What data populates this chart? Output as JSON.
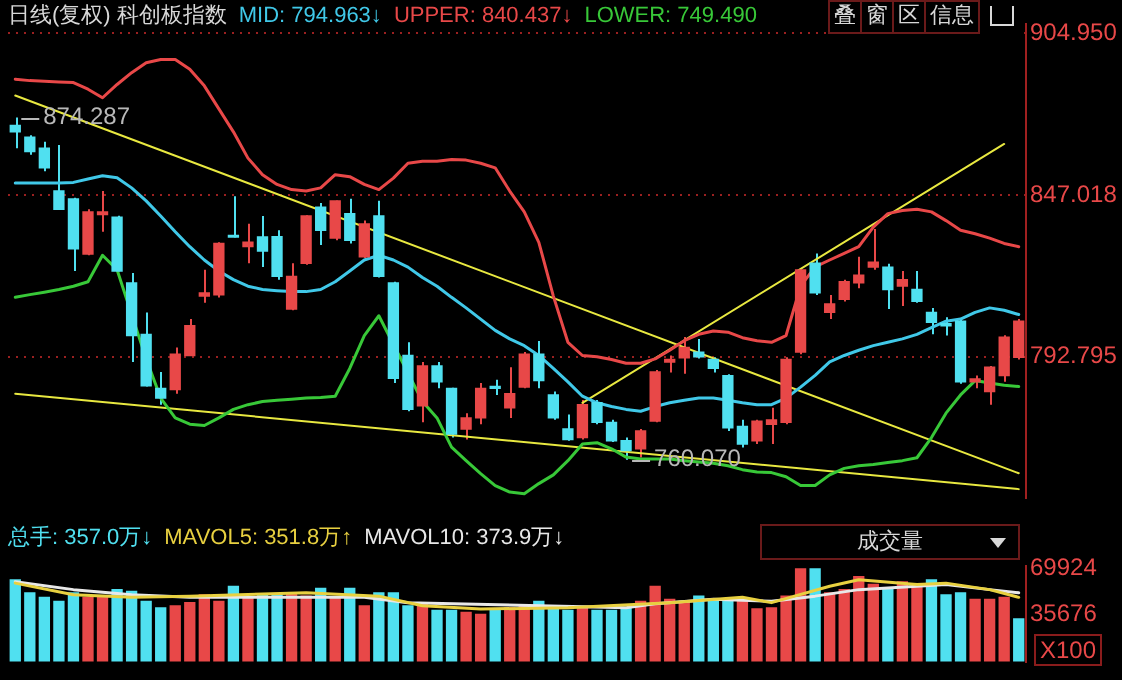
{
  "chart_data": [
    {
      "type": "candlestick",
      "title": "日线(复权)  科创板指数",
      "log": "y",
      "grid": "y",
      "tick_labels": "y",
      "categories": [
        null,
        null,
        null,
        null,
        null,
        null,
        null,
        null,
        null,
        null,
        null,
        null,
        null,
        null,
        null,
        null,
        null,
        null,
        null,
        null,
        null,
        null,
        null,
        null,
        null,
        null,
        null,
        null,
        null,
        null,
        null,
        null,
        null,
        null,
        null,
        null,
        null,
        null,
        null,
        null,
        null,
        null,
        null,
        null,
        null,
        null,
        null,
        null,
        null,
        null,
        null,
        null,
        null,
        null,
        null,
        null,
        null,
        null,
        null,
        null,
        null,
        null,
        null,
        null,
        null,
        null,
        null,
        null,
        null,
        null
      ],
      "ylim": [
        748.4,
        908.4
      ],
      "yticks": [
        792.795,
        847.018,
        {
          "value": 904.95,
          "label": "904.950"
        }
      ],
      "ohlc": [
        [
          871.5,
          874.287,
          863.4,
          869.2
        ],
        [
          867.3,
          868.0,
          861.1,
          862.2
        ],
        [
          863.4,
          865.7,
          855.3,
          856.5
        ],
        [
          848.4,
          864.5,
          841.9,
          842.1
        ],
        [
          845.7,
          846.1,
          821.1,
          828.6
        ],
        [
          826.8,
          842.1,
          826.4,
          841.2
        ],
        [
          840.3,
          848.4,
          834.4,
          841.2
        ],
        [
          839.4,
          839.9,
          820.9,
          821.1
        ],
        [
          817.1,
          820.4,
          791.1,
          799.7
        ],
        [
          800.1,
          807.3,
          783.2,
          783.4
        ],
        [
          782.6,
          787.9,
          777.4,
          779.5
        ],
        [
          782.2,
          795.8,
          780.9,
          793.6
        ],
        [
          793.2,
          805.1,
          793.0,
          802.9
        ],
        [
          812.7,
          821.5,
          810.5,
          813.8
        ],
        [
          813.1,
          830.8,
          812.2,
          830.4
        ],
        [
          833.1,
          846.6,
          832.4,
          832.6
        ],
        [
          829.3,
          837.1,
          823.7,
          830.8
        ],
        [
          832.6,
          839.8,
          822.4,
          827.8
        ],
        [
          832.7,
          834.9,
          818.2,
          819.3
        ],
        [
          808.4,
          823.7,
          808.0,
          819.3
        ],
        [
          823.7,
          840.0,
          823.2,
          839.8
        ],
        [
          842.8,
          844.3,
          829.9,
          834.9
        ],
        [
          832.2,
          845.1,
          831.5,
          845.0
        ],
        [
          840.6,
          845.7,
          830.4,
          831.5
        ],
        [
          825.9,
          838.2,
          825.5,
          837.1
        ],
        [
          839.8,
          845.0,
          818.9,
          819.3
        ],
        [
          817.1,
          817.5,
          784.3,
          785.8
        ],
        [
          793.2,
          797.5,
          775.3,
          775.9
        ],
        [
          777.0,
          791.1,
          771.8,
          789.8
        ],
        [
          789.8,
          791.1,
          782.6,
          784.7
        ],
        [
          782.6,
          782.8,
          767.0,
          768.1
        ],
        [
          769.7,
          774.7,
          766.4,
          773.2
        ],
        [
          773.2,
          784.3,
          771.2,
          782.6
        ],
        [
          783.2,
          785.4,
          780.5,
          782.6
        ],
        [
          776.4,
          789.4,
          773.2,
          780.9
        ],
        [
          783.0,
          794.3,
          782.6,
          793.6
        ],
        [
          793.6,
          797.9,
          782.6,
          785.1
        ],
        [
          780.5,
          781.6,
          772.6,
          773.2
        ],
        [
          769.7,
          774.3,
          766.0,
          766.4
        ],
        [
          767.0,
          778.9,
          766.4,
          777.4
        ],
        [
          778.0,
          778.9,
          771.2,
          771.8
        ],
        [
          771.8,
          772.6,
          765.6,
          766.0
        ],
        [
          766.0,
          767.0,
          760.07,
          762.9
        ],
        [
          763.5,
          769.7,
          760.8,
          769.1
        ],
        [
          772.2,
          788.5,
          771.8,
          787.9
        ],
        [
          791.1,
          793.2,
          787.7,
          791.9
        ],
        [
          792.4,
          799.2,
          787.3,
          795.8
        ],
        [
          794.3,
          798.6,
          792.2,
          792.8
        ],
        [
          791.9,
          792.6,
          787.7,
          789.0
        ],
        [
          786.7,
          787.1,
          769.1,
          770.1
        ],
        [
          770.5,
          772.6,
          763.9,
          765.0
        ],
        [
          766.0,
          772.6,
          765.0,
          772.2
        ],
        [
          771.2,
          776.4,
          765.0,
          772.6
        ],
        [
          771.8,
          792.6,
          771.2,
          791.9
        ],
        [
          794.3,
          821.9,
          793.6,
          821.5
        ],
        [
          823.7,
          827.0,
          813.1,
          813.8
        ],
        [
          807.3,
          813.1,
          805.1,
          810.1
        ],
        [
          811.6,
          818.2,
          810.9,
          817.5
        ],
        [
          817.1,
          825.9,
          815.3,
          819.7
        ],
        [
          822.4,
          835.3,
          821.5,
          824.1
        ],
        [
          822.4,
          823.5,
          808.4,
          814.9
        ],
        [
          816.0,
          821.1,
          809.4,
          818.2
        ],
        [
          814.9,
          821.1,
          810.5,
          811.0
        ],
        [
          807.3,
          808.8,
          800.1,
          804.0
        ],
        [
          803.6,
          805.7,
          799.7,
          802.9
        ],
        [
          804.4,
          805.1,
          784.1,
          784.7
        ],
        [
          784.7,
          786.7,
          782.6,
          785.6
        ],
        [
          781.6,
          789.8,
          777.4,
          789.4
        ],
        [
          786.7,
          799.8,
          784.7,
          799.2
        ],
        [
          792.6,
          805.1,
          791.9,
          804.4
        ]
      ],
      "colors": [
        "#50e0f0",
        "#50e0f0",
        "#50e0f0",
        "#50e0f0",
        "#50e0f0",
        "#e84848",
        "#e84848",
        "#50e0f0",
        "#50e0f0",
        "#50e0f0",
        "#50e0f0",
        "#e84848",
        "#e84848",
        "#e84848",
        "#e84848",
        "#50e0f0",
        "#e84848",
        "#50e0f0",
        "#50e0f0",
        "#e84848",
        "#e84848",
        "#50e0f0",
        "#e84848",
        "#50e0f0",
        "#e84848",
        "#50e0f0",
        "#50e0f0",
        "#50e0f0",
        "#e84848",
        "#50e0f0",
        "#50e0f0",
        "#e84848",
        "#e84848",
        "#50e0f0",
        "#e84848",
        "#e84848",
        "#50e0f0",
        "#50e0f0",
        "#50e0f0",
        "#e84848",
        "#50e0f0",
        "#50e0f0",
        "#50e0f0",
        "#e84848",
        "#e84848",
        "#e84848",
        "#e84848",
        "#50e0f0",
        "#50e0f0",
        "#50e0f0",
        "#50e0f0",
        "#e84848",
        "#e84848",
        "#e84848",
        "#e84848",
        "#50e0f0",
        "#e84848",
        "#e84848",
        "#e84848",
        "#e84848",
        "#50e0f0",
        "#e84848",
        "#50e0f0",
        "#50e0f0",
        "#50e0f0",
        "#50e0f0",
        "#e84848",
        "#e84848",
        "#e84848",
        "#e84848"
      ],
      "series": [
        {
          "type": "line",
          "name": "MID: 794.963↓",
          "color": "#40c8e8",
          "values": [
            851.2,
            851.2,
            851.2,
            851.2,
            851.4,
            852.6,
            853.7,
            853.0,
            849.5,
            845.0,
            839.8,
            834.4,
            829.3,
            824.8,
            821.1,
            818.2,
            816.0,
            814.9,
            814.5,
            814.2,
            814.2,
            814.9,
            817.5,
            821.1,
            824.8,
            826.4,
            824.8,
            822.4,
            818.9,
            816.0,
            812.3,
            808.8,
            805.1,
            801.4,
            798.6,
            796.4,
            793.2,
            789.0,
            784.7,
            780.1,
            778.0,
            776.8,
            775.9,
            775.3,
            776.8,
            778.0,
            778.8,
            779.5,
            779.5,
            778.8,
            778.0,
            777.4,
            777.4,
            779.5,
            783.0,
            786.8,
            791.1,
            793.2,
            794.9,
            796.4,
            797.5,
            798.6,
            800.1,
            802.3,
            804.4,
            805.1,
            807.3,
            808.8,
            808.0,
            806.6
          ]
        },
        {
          "type": "line",
          "name": "UPPER: 840.437↓",
          "color": "#e84848",
          "values": [
            888.1,
            887.6,
            887.4,
            887.1,
            886.9,
            884.5,
            881.4,
            886.2,
            890.5,
            894.1,
            895.3,
            895.3,
            891.7,
            885.7,
            877.4,
            869.2,
            859.9,
            854.1,
            850.7,
            848.9,
            848.4,
            849.5,
            854.1,
            853.4,
            850.7,
            848.9,
            852.9,
            858.1,
            858.8,
            858.8,
            859.4,
            859.2,
            858.1,
            856.5,
            848.4,
            841.2,
            830.8,
            812.7,
            797.5,
            793.2,
            792.8,
            791.9,
            790.7,
            790.7,
            792.1,
            794.9,
            798.0,
            800.1,
            801.2,
            800.8,
            799.0,
            798.0,
            797.5,
            799.7,
            816.0,
            822.5,
            824.8,
            827.0,
            829.3,
            836.0,
            840.6,
            841.7,
            842.1,
            841.2,
            838.2,
            834.9,
            833.7,
            832.2,
            830.4,
            829.3
          ]
        },
        {
          "type": "line",
          "name": "LOWER: 749.490",
          "color": "#38c838",
          "values": [
            812.3,
            813.2,
            814.0,
            814.9,
            816.0,
            817.5,
            826.4,
            821.5,
            null,
            792.1,
            779.5,
            773.2,
            771.2,
            770.8,
            773.2,
            775.9,
            777.4,
            778.4,
            778.8,
            779.1,
            779.5,
            779.7,
            780.1,
            789.0,
            799.7,
            806.2,
            null,
            null,
            778.4,
            773.2,
            764.0,
            759.8,
            755.8,
            752.1,
            750.1,
            749.6,
            752.7,
            755.4,
            759.8,
            765.0,
            765.4,
            763.5,
            760.9,
            760.3,
            760.3,
            760.3,
            759.8,
            759.4,
            759.0,
            758.2,
            757.0,
            756.3,
            756.1,
            754.8,
            752.1,
            752.1,
            755.4,
            757.4,
            758.2,
            758.6,
            759.2,
            759.8,
            760.7,
            767.0,
            774.7,
            780.5,
            785.1,
            784.3,
            783.6,
            783.2
          ]
        },
        {
          "type": "line",
          "color": "#e8e840",
          "values": [
            882.2,
            null,
            null,
            null,
            null,
            null,
            null,
            null,
            null,
            null,
            null,
            null,
            null,
            null,
            null,
            null,
            null,
            null,
            null,
            null,
            null,
            null,
            null,
            null,
            null,
            null,
            null,
            null,
            null,
            null,
            null,
            null,
            null,
            null,
            null,
            null,
            null,
            null,
            null,
            null,
            null,
            null,
            null,
            null,
            null,
            null,
            null,
            null,
            null,
            null,
            null,
            null,
            null,
            null,
            null,
            null,
            null,
            null,
            null,
            null,
            null,
            null,
            null,
            null,
            null,
            null,
            null,
            null,
            null,
            755.9
          ]
        },
        {
          "type": "line",
          "color": "#e8e840",
          "values": [
            780.9,
            null,
            null,
            null,
            null,
            null,
            null,
            null,
            null,
            null,
            null,
            null,
            null,
            null,
            null,
            null,
            null,
            null,
            null,
            null,
            null,
            null,
            null,
            null,
            null,
            null,
            null,
            null,
            null,
            null,
            null,
            null,
            null,
            null,
            null,
            null,
            null,
            null,
            null,
            null,
            null,
            null,
            null,
            null,
            null,
            null,
            null,
            null,
            null,
            null,
            null,
            null,
            null,
            null,
            null,
            null,
            null,
            null,
            null,
            null,
            null,
            null,
            null,
            null,
            null,
            null,
            null,
            null,
            null,
            751.0
          ]
        },
        {
          "type": "line",
          "color": "#e8e840",
          "values": [
            null,
            null,
            null,
            null,
            null,
            null,
            null,
            null,
            null,
            null,
            null,
            null,
            null,
            null,
            null,
            null,
            null,
            null,
            null,
            null,
            null,
            null,
            null,
            null,
            null,
            null,
            null,
            null,
            null,
            null,
            null,
            null,
            null,
            null,
            null,
            null,
            null,
            null,
            null,
            778.0,
            null,
            null,
            null,
            null,
            null,
            null,
            null,
            null,
            null,
            null,
            null,
            null,
            null,
            null,
            null,
            null,
            null,
            null,
            null,
            null,
            null,
            null,
            null,
            null,
            null,
            null,
            null,
            null,
            864.9,
            null
          ]
        }
      ],
      "annotations": [
        {
          "text": "874.287",
          "y": 874.287
        },
        {
          "text": "760.070",
          "y": 760.07
        },
        "叠",
        "窗",
        "区",
        "信息"
      ]
    },
    {
      "type": "bar",
      "tick_labels": "y",
      "ylabel": "X100",
      "categories": [
        null,
        null,
        null,
        null,
        null,
        null,
        null,
        null,
        null,
        null,
        null,
        null,
        null,
        null,
        null,
        null,
        null,
        null,
        null,
        null,
        null,
        null,
        null,
        null,
        null,
        null,
        null,
        null,
        null,
        null,
        null,
        null,
        null,
        null,
        null,
        null,
        null,
        null,
        null,
        null,
        null,
        null,
        null,
        null,
        null,
        null,
        null,
        null,
        null,
        null,
        null,
        null,
        null,
        null,
        null,
        null,
        null,
        null,
        null,
        null,
        null,
        null,
        null,
        null,
        null,
        null,
        null,
        null,
        null,
        null
      ],
      "ylim": [
        0,
        72000
      ],
      "yticks": [
        69924,
        35676
      ],
      "series": [
        {
          "name": "总手: 357.0万↓",
          "colors": [
            "#50e0f0",
            "#50e0f0",
            "#50e0f0",
            "#50e0f0",
            "#50e0f0",
            "#e84848",
            "#e84848",
            "#50e0f0",
            "#50e0f0",
            "#50e0f0",
            "#50e0f0",
            "#e84848",
            "#e84848",
            "#e84848",
            "#e84848",
            "#50e0f0",
            "#e84848",
            "#50e0f0",
            "#50e0f0",
            "#e84848",
            "#e84848",
            "#50e0f0",
            "#e84848",
            "#50e0f0",
            "#e84848",
            "#50e0f0",
            "#50e0f0",
            "#50e0f0",
            "#e84848",
            "#50e0f0",
            "#50e0f0",
            "#e84848",
            "#e84848",
            "#50e0f0",
            "#e84848",
            "#e84848",
            "#50e0f0",
            "#50e0f0",
            "#50e0f0",
            "#e84848",
            "#50e0f0",
            "#50e0f0",
            "#50e0f0",
            "#e84848",
            "#e84848",
            "#e84848",
            "#e84848",
            "#50e0f0",
            "#50e0f0",
            "#50e0f0",
            "#e84848",
            "#e84848",
            "#e84848",
            "#e84848",
            "#e84848",
            "#50e0f0",
            "#e84848",
            "#e84848",
            "#e84848",
            "#e84848",
            "#50e0f0",
            "#e84848",
            "#e84848",
            "#50e0f0",
            "#50e0f0",
            "#50e0f0",
            "#e84848",
            "#e84848",
            "#e84848",
            "#50e0f0"
          ],
          "values": [
            61600,
            51800,
            48400,
            45400,
            51800,
            48400,
            48400,
            54200,
            52800,
            45400,
            40500,
            42000,
            44400,
            50300,
            45400,
            56700,
            48400,
            50300,
            50300,
            51800,
            49300,
            55200,
            48400,
            55200,
            42000,
            51800,
            51800,
            42000,
            44400,
            38600,
            38600,
            37100,
            35600,
            38600,
            40500,
            42000,
            45400,
            42000,
            38600,
            40500,
            38600,
            38600,
            40500,
            45400,
            56700,
            46900,
            45400,
            49300,
            45400,
            46900,
            45400,
            39600,
            40500,
            49300,
            69900,
            69900,
            51800,
            54200,
            64000,
            58100,
            54200,
            60100,
            56700,
            61600,
            50300,
            51800,
            46900,
            46900,
            48400,
            32200
          ]
        },
        {
          "type": "line",
          "name": "MAVOL5: 351.8万↑",
          "color": "#e8d040",
          "values": [
            59100,
            null,
            null,
            null,
            50300,
            null,
            null,
            null,
            48400,
            null,
            null,
            null,
            49300,
            null,
            null,
            null,
            null,
            null,
            null,
            null,
            51800,
            null,
            null,
            null,
            null,
            49300,
            null,
            null,
            42000,
            null,
            null,
            null,
            39600,
            null,
            null,
            null,
            null,
            null,
            40500,
            null,
            null,
            null,
            null,
            null,
            null,
            44400,
            null,
            null,
            null,
            null,
            48400,
            null,
            44400,
            null,
            null,
            null,
            56700,
            null,
            61600,
            null,
            null,
            null,
            58100,
            null,
            59100,
            null,
            null,
            54200,
            null,
            48400
          ]
        },
        {
          "type": "line",
          "name": "MAVOL10: 373.9万↓",
          "color": "#e8e8e8",
          "values": [
            60100,
            null,
            null,
            null,
            54200,
            null,
            null,
            null,
            50300,
            null,
            null,
            null,
            48400,
            null,
            null,
            null,
            null,
            null,
            null,
            null,
            null,
            null,
            null,
            null,
            48400,
            null,
            null,
            44400,
            null,
            null,
            null,
            null,
            null,
            null,
            null,
            null,
            null,
            null,
            null,
            null,
            null,
            null,
            40500,
            null,
            43500,
            null,
            null,
            null,
            46900,
            null,
            null,
            null,
            45400,
            null,
            null,
            49300,
            null,
            null,
            54200,
            null,
            null,
            null,
            56700,
            null,
            58100,
            null,
            null,
            54200,
            null,
            51800
          ]
        }
      ],
      "annotations": [
        "成交量"
      ]
    }
  ]
}
